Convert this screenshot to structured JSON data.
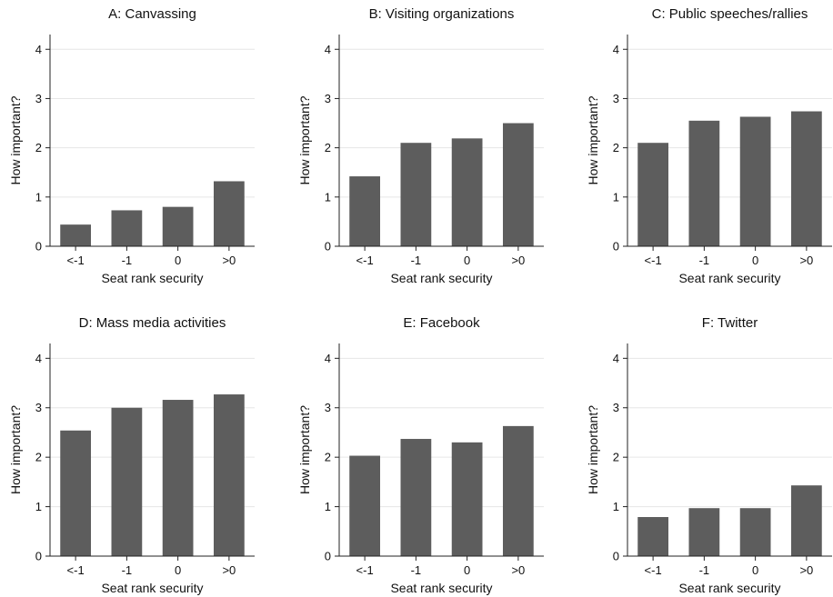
{
  "chart_data": [
    {
      "type": "bar",
      "title": "A: Canvassing",
      "categories": [
        "<-1",
        "-1",
        "0",
        ">0"
      ],
      "values": [
        0.44,
        0.73,
        0.8,
        1.32
      ],
      "xlabel": "Seat rank security",
      "ylabel": "How important?",
      "ylim": [
        0,
        4.3
      ],
      "yticks": [
        0,
        1,
        2,
        3,
        4
      ],
      "grid": true,
      "bar_color": "#5d5d5d"
    },
    {
      "type": "bar",
      "title": "B: Visiting organizations",
      "categories": [
        "<-1",
        "-1",
        "0",
        ">0"
      ],
      "values": [
        1.42,
        2.1,
        2.19,
        2.5
      ],
      "xlabel": "Seat rank security",
      "ylabel": "How important?",
      "ylim": [
        0,
        4.3
      ],
      "yticks": [
        0,
        1,
        2,
        3,
        4
      ],
      "grid": true,
      "bar_color": "#5d5d5d"
    },
    {
      "type": "bar",
      "title": "C: Public speeches/rallies",
      "categories": [
        "<-1",
        "-1",
        "0",
        ">0"
      ],
      "values": [
        2.1,
        2.55,
        2.63,
        2.74
      ],
      "xlabel": "Seat rank security",
      "ylabel": "How important?",
      "ylim": [
        0,
        4.3
      ],
      "yticks": [
        0,
        1,
        2,
        3,
        4
      ],
      "grid": true,
      "bar_color": "#5d5d5d"
    },
    {
      "type": "bar",
      "title": "D: Mass media activities",
      "categories": [
        "<-1",
        "-1",
        "0",
        ">0"
      ],
      "values": [
        2.54,
        3.0,
        3.16,
        3.27
      ],
      "xlabel": "Seat rank security",
      "ylabel": "How important?",
      "ylim": [
        0,
        4.3
      ],
      "yticks": [
        0,
        1,
        2,
        3,
        4
      ],
      "grid": true,
      "bar_color": "#5d5d5d"
    },
    {
      "type": "bar",
      "title": "E: Facebook",
      "categories": [
        "<-1",
        "-1",
        "0",
        ">0"
      ],
      "values": [
        2.03,
        2.37,
        2.3,
        2.63
      ],
      "xlabel": "Seat rank security",
      "ylabel": "How important?",
      "ylim": [
        0,
        4.3
      ],
      "yticks": [
        0,
        1,
        2,
        3,
        4
      ],
      "grid": true,
      "bar_color": "#5d5d5d"
    },
    {
      "type": "bar",
      "title": "F: Twitter",
      "categories": [
        "<-1",
        "-1",
        "0",
        ">0"
      ],
      "values": [
        0.79,
        0.97,
        0.97,
        1.43
      ],
      "xlabel": "Seat rank security",
      "ylabel": "How important?",
      "ylim": [
        0,
        4.3
      ],
      "yticks": [
        0,
        1,
        2,
        3,
        4
      ],
      "grid": true,
      "bar_color": "#5d5d5d"
    }
  ]
}
